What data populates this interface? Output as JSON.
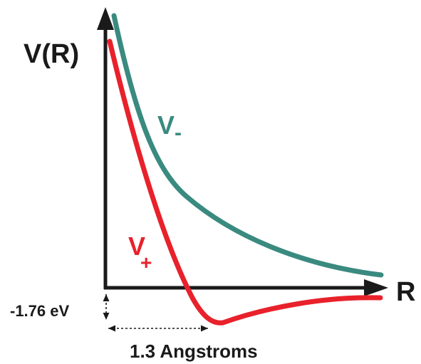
{
  "diagram": {
    "y_axis_label": "V(R)",
    "x_axis_label": "R",
    "curve_minus": {
      "symbol": "V",
      "subscript": "-",
      "color": "#3a8a80"
    },
    "curve_plus": {
      "symbol": "V",
      "subscript": "+",
      "color": "#e8212b"
    },
    "well_depth_label": "-1.76 eV",
    "equilibrium_distance_label": "1.3 Angstroms",
    "axis_color": "#1a1a1a"
  }
}
